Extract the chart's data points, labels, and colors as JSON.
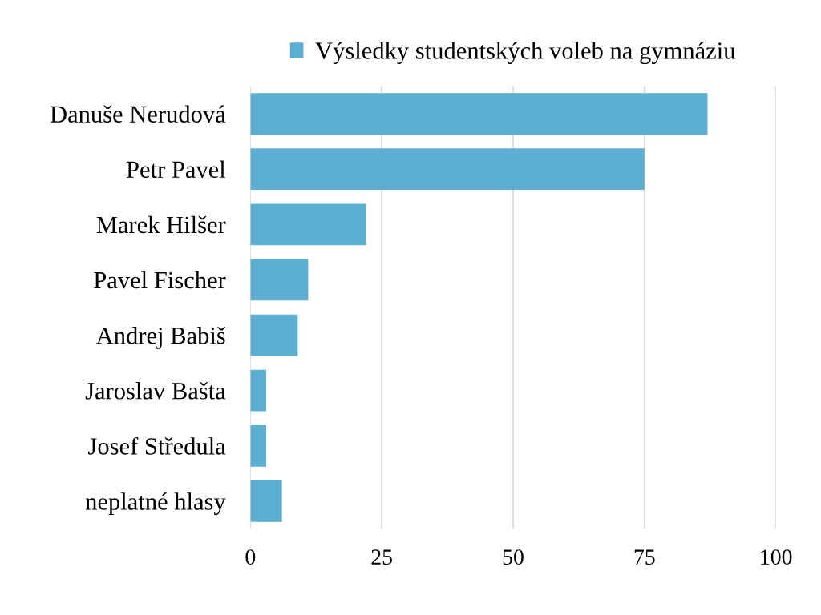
{
  "chart_data": {
    "type": "bar",
    "orientation": "horizontal",
    "categories": [
      "Danuše Nerudová",
      "Petr Pavel",
      "Marek Hilšer",
      "Pavel Fischer",
      "Andrej Babiš",
      "Jaroslav Bašta",
      "Josef Středula",
      "neplatné hlasy"
    ],
    "series": [
      {
        "name": "Výsledky studentských voleb na gymnáziu",
        "color": "#5daed3",
        "values": [
          87,
          75,
          22,
          11,
          9,
          3,
          3,
          6
        ]
      }
    ],
    "xlim": [
      0,
      100
    ],
    "xticks": [
      0,
      25,
      50,
      75,
      100
    ],
    "grid": "x",
    "legend": "top"
  }
}
